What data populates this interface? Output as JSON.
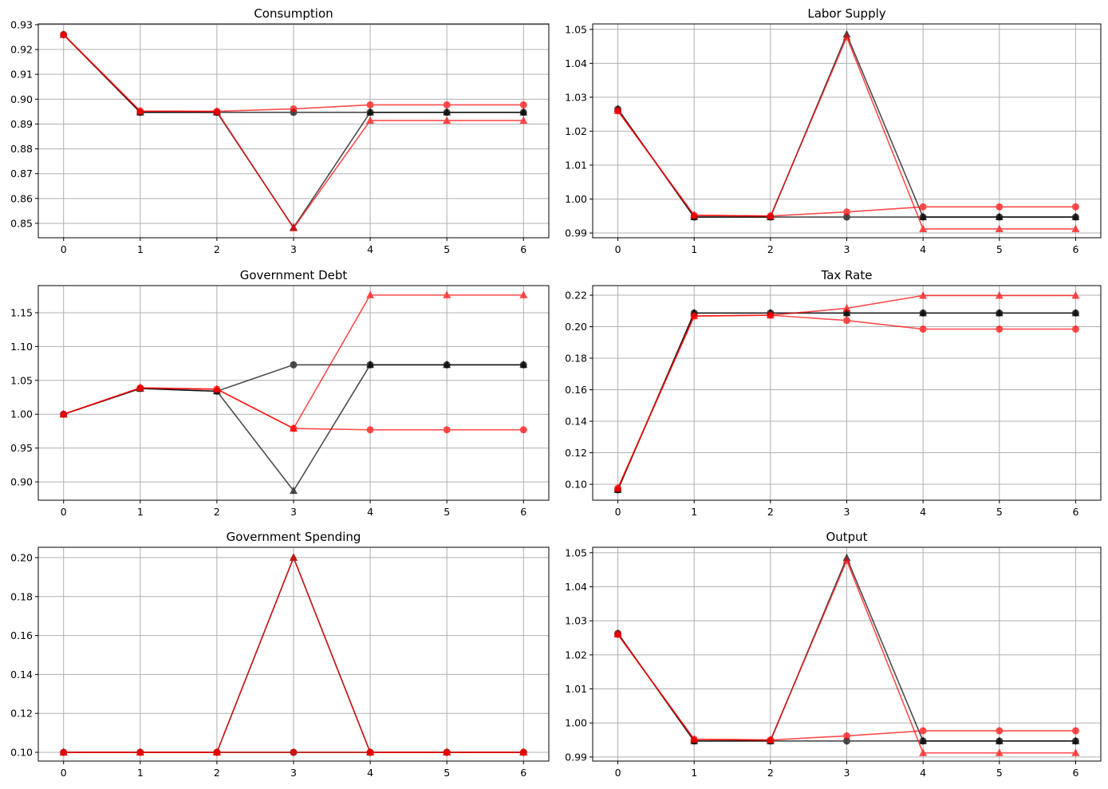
{
  "chart_data": [
    {
      "type": "line",
      "title": "Consumption",
      "x": [
        0,
        1,
        2,
        3,
        4,
        5,
        6
      ],
      "xlim": [
        -0.33,
        6.33
      ],
      "ylim": [
        0.8442,
        0.9303
      ],
      "xticks": [
        "0",
        "1",
        "2",
        "3",
        "4",
        "5",
        "6"
      ],
      "yticks": [
        0.85,
        0.86,
        0.87,
        0.88,
        0.89,
        0.9,
        0.91,
        0.92,
        0.93
      ],
      "ytick_labels": [
        "0.85",
        "0.86",
        "0.87",
        "0.88",
        "0.89",
        "0.90",
        "0.91",
        "0.92",
        "0.93"
      ],
      "grid": true,
      "series": [
        {
          "color": "#000000",
          "marker": "circle",
          "values": [
            0.926,
            0.8947,
            0.8947,
            0.8947,
            0.8947,
            0.8947,
            0.8947
          ]
        },
        {
          "color": "#000000",
          "marker": "triangle",
          "values": [
            0.926,
            0.8947,
            0.8947,
            0.8483,
            0.8947,
            0.8947,
            0.8947
          ]
        },
        {
          "color": "#ff0000",
          "marker": "circle",
          "values": [
            0.926,
            0.8952,
            0.8951,
            0.8961,
            0.8977,
            0.8977,
            0.8977
          ]
        },
        {
          "color": "#ff0000",
          "marker": "triangle",
          "values": [
            0.926,
            0.8952,
            0.8951,
            0.8481,
            0.8914,
            0.8914,
            0.8914
          ]
        }
      ]
    },
    {
      "type": "line",
      "title": "Labor Supply",
      "x": [
        0,
        1,
        2,
        3,
        4,
        5,
        6
      ],
      "xlim": [
        -0.33,
        6.33
      ],
      "ylim": [
        0.9886,
        1.0516
      ],
      "xticks": [
        "0",
        "1",
        "2",
        "3",
        "4",
        "5",
        "6"
      ],
      "yticks": [
        0.99,
        1.0,
        1.01,
        1.02,
        1.03,
        1.04,
        1.05
      ],
      "ytick_labels": [
        "0.99",
        "1.00",
        "1.01",
        "1.02",
        "1.03",
        "1.04",
        "1.05"
      ],
      "grid": true,
      "series": [
        {
          "color": "#000000",
          "marker": "circle",
          "values": [
            1.0265,
            0.9947,
            0.9947,
            0.9947,
            0.9947,
            0.9947,
            0.9947
          ]
        },
        {
          "color": "#000000",
          "marker": "triangle",
          "values": [
            1.0265,
            0.9947,
            0.9947,
            1.0485,
            0.9947,
            0.9947,
            0.9947
          ]
        },
        {
          "color": "#ff0000",
          "marker": "circle",
          "values": [
            1.026,
            0.9952,
            0.995,
            0.9962,
            0.9977,
            0.9977,
            0.9977
          ]
        },
        {
          "color": "#ff0000",
          "marker": "triangle",
          "values": [
            1.026,
            0.9952,
            0.995,
            1.0477,
            0.9912,
            0.9912,
            0.9912
          ]
        }
      ]
    },
    {
      "type": "line",
      "title": "Government Debt",
      "x": [
        0,
        1,
        2,
        3,
        4,
        5,
        6
      ],
      "xlim": [
        -0.33,
        6.33
      ],
      "ylim": [
        0.873,
        1.19
      ],
      "xticks": [
        "0",
        "1",
        "2",
        "3",
        "4",
        "5",
        "6"
      ],
      "yticks": [
        0.9,
        0.95,
        1.0,
        1.05,
        1.1,
        1.15
      ],
      "ytick_labels": [
        "0.90",
        "0.95",
        "1.00",
        "1.05",
        "1.10",
        "1.15"
      ],
      "grid": true,
      "series": [
        {
          "color": "#000000",
          "marker": "circle",
          "values": [
            1.0,
            1.038,
            1.034,
            1.073,
            1.073,
            1.073,
            1.073
          ]
        },
        {
          "color": "#000000",
          "marker": "triangle",
          "values": [
            1.0,
            1.038,
            1.034,
            0.887,
            1.073,
            1.073,
            1.073
          ]
        },
        {
          "color": "#ff0000",
          "marker": "circle",
          "values": [
            1.0,
            1.039,
            1.037,
            0.979,
            0.977,
            0.977,
            0.977
          ]
        },
        {
          "color": "#ff0000",
          "marker": "triangle",
          "values": [
            1.0,
            1.039,
            1.037,
            0.979,
            1.176,
            1.176,
            1.176
          ]
        }
      ]
    },
    {
      "type": "line",
      "title": "Tax Rate",
      "x": [
        0,
        1,
        2,
        3,
        4,
        5,
        6
      ],
      "xlim": [
        -0.33,
        6.33
      ],
      "ylim": [
        0.0899,
        0.2261
      ],
      "xticks": [
        "0",
        "1",
        "2",
        "3",
        "4",
        "5",
        "6"
      ],
      "yticks": [
        0.1,
        0.12,
        0.14,
        0.16,
        0.18,
        0.2,
        0.22
      ],
      "ytick_labels": [
        "0.10",
        "0.12",
        "0.14",
        "0.16",
        "0.18",
        "0.20",
        "0.22"
      ],
      "grid": true,
      "series": [
        {
          "color": "#000000",
          "marker": "circle",
          "values": [
            0.0965,
            0.2087,
            0.2087,
            0.2087,
            0.2087,
            0.2087,
            0.2087
          ]
        },
        {
          "color": "#000000",
          "marker": "triangle",
          "values": [
            0.0965,
            0.2087,
            0.2087,
            0.2087,
            0.2087,
            0.2087,
            0.2087
          ]
        },
        {
          "color": "#ff0000",
          "marker": "circle",
          "values": [
            0.0975,
            0.2068,
            0.2073,
            0.204,
            0.1985,
            0.1985,
            0.1985
          ]
        },
        {
          "color": "#ff0000",
          "marker": "triangle",
          "values": [
            0.0975,
            0.2068,
            0.2073,
            0.2117,
            0.2198,
            0.2198,
            0.2198
          ]
        }
      ]
    },
    {
      "type": "line",
      "title": "Government Spending",
      "x": [
        0,
        1,
        2,
        3,
        4,
        5,
        6
      ],
      "xlim": [
        -0.33,
        6.33
      ],
      "ylim": [
        0.0955,
        0.2053
      ],
      "xticks": [
        "0",
        "1",
        "2",
        "3",
        "4",
        "5",
        "6"
      ],
      "yticks": [
        0.1,
        0.12,
        0.14,
        0.16,
        0.18,
        0.2
      ],
      "ytick_labels": [
        "0.10",
        "0.12",
        "0.14",
        "0.16",
        "0.18",
        "0.20"
      ],
      "grid": true,
      "series": [
        {
          "color": "#000000",
          "marker": "circle",
          "values": [
            0.1,
            0.1,
            0.1,
            0.1,
            0.1,
            0.1,
            0.1
          ]
        },
        {
          "color": "#000000",
          "marker": "triangle",
          "values": [
            0.1,
            0.1,
            0.1,
            0.2,
            0.1,
            0.1,
            0.1
          ]
        },
        {
          "color": "#ff0000",
          "marker": "circle",
          "values": [
            0.1,
            0.1,
            0.1,
            0.1,
            0.1,
            0.1,
            0.1
          ]
        },
        {
          "color": "#ff0000",
          "marker": "triangle",
          "values": [
            0.1,
            0.1,
            0.1,
            0.2,
            0.1,
            0.1,
            0.1
          ]
        }
      ]
    },
    {
      "type": "line",
      "title": "Output",
      "x": [
        0,
        1,
        2,
        3,
        4,
        5,
        6
      ],
      "xlim": [
        -0.33,
        6.33
      ],
      "ylim": [
        0.9888,
        1.0516
      ],
      "xticks": [
        "0",
        "1",
        "2",
        "3",
        "4",
        "5",
        "6"
      ],
      "yticks": [
        0.99,
        1.0,
        1.01,
        1.02,
        1.03,
        1.04,
        1.05
      ],
      "ytick_labels": [
        "0.99",
        "1.00",
        "1.01",
        "1.02",
        "1.03",
        "1.04",
        "1.05"
      ],
      "grid": true,
      "series": [
        {
          "color": "#000000",
          "marker": "circle",
          "values": [
            1.0263,
            0.9947,
            0.9947,
            0.9947,
            0.9947,
            0.9947,
            0.9947
          ]
        },
        {
          "color": "#000000",
          "marker": "triangle",
          "values": [
            1.0263,
            0.9947,
            0.9947,
            1.0485,
            0.9947,
            0.9947,
            0.9947
          ]
        },
        {
          "color": "#ff0000",
          "marker": "circle",
          "values": [
            1.026,
            0.9952,
            0.995,
            0.9962,
            0.9977,
            0.9977,
            0.9977
          ]
        },
        {
          "color": "#ff0000",
          "marker": "triangle",
          "values": [
            1.026,
            0.9952,
            0.995,
            1.0477,
            0.9912,
            0.9912,
            0.9912
          ]
        }
      ]
    }
  ]
}
